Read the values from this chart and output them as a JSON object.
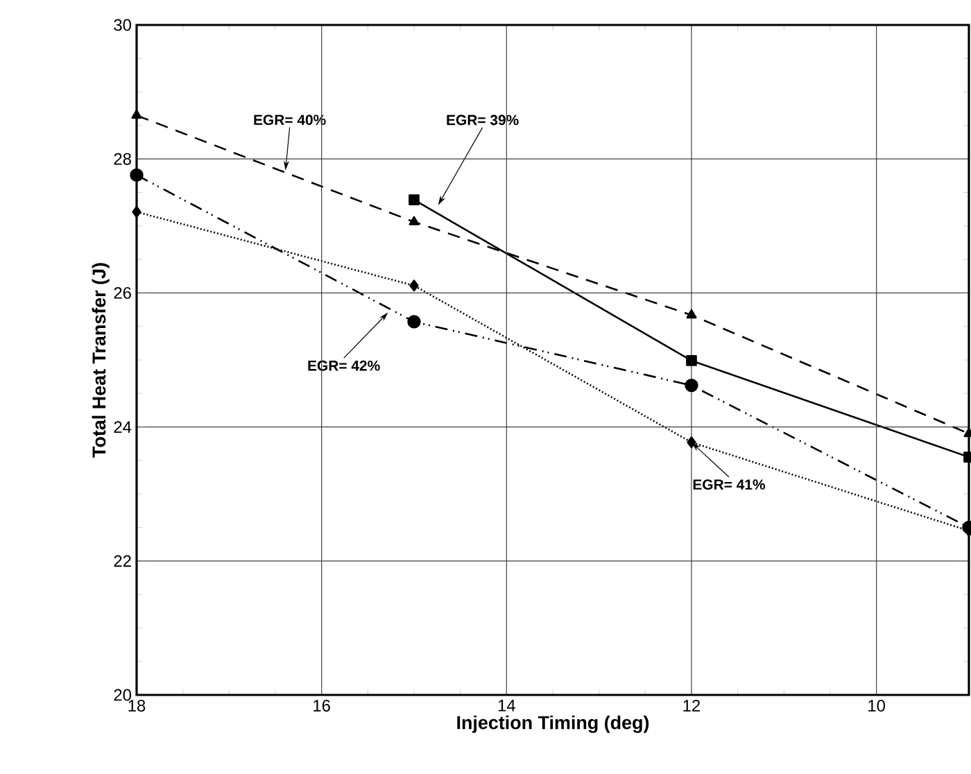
{
  "chart_data": {
    "type": "line",
    "xlabel": "Injection Timing (deg)",
    "ylabel": "Total Heat Transfer (J)",
    "x": [
      18,
      15,
      12,
      9
    ],
    "series": [
      {
        "color": "#000000",
        "marker": "triangle",
        "line_style": "dashed",
        "values": [
          28.65,
          27.06,
          25.67,
          23.9
        ]
      },
      {
        "color": "#000000",
        "marker": "square",
        "line_style": "solid",
        "x": [
          15,
          12,
          9
        ],
        "values": [
          27.39,
          24.99,
          23.55
        ]
      },
      {
        "color": "#000000",
        "marker": "circle",
        "line_style": "dashdotdotted",
        "values": [
          27.76,
          25.57,
          24.62,
          22.5
        ]
      },
      {
        "color": "#000000",
        "marker": "diamond",
        "line_style": "dotted",
        "values": [
          27.21,
          26.11,
          23.77,
          22.45
        ]
      }
    ],
    "xlim": [
      18,
      9
    ],
    "xticks": [
      18,
      16,
      14,
      12,
      10
    ],
    "ylim": [
      20,
      30
    ],
    "yticks": [
      20,
      22,
      24,
      26,
      28,
      30
    ],
    "grid": true,
    "annotations": [
      {
        "text": "EGR= 40%",
        "x": 16.39,
        "y": 27.83
      },
      {
        "text": "EGR= 39%",
        "x": 14.74,
        "y": 27.31
      },
      {
        "text": "EGR= 42%",
        "x": 15.28,
        "y": 25.71
      },
      {
        "text": "EGR= 41%",
        "x": 12,
        "y": 23.77
      }
    ]
  }
}
